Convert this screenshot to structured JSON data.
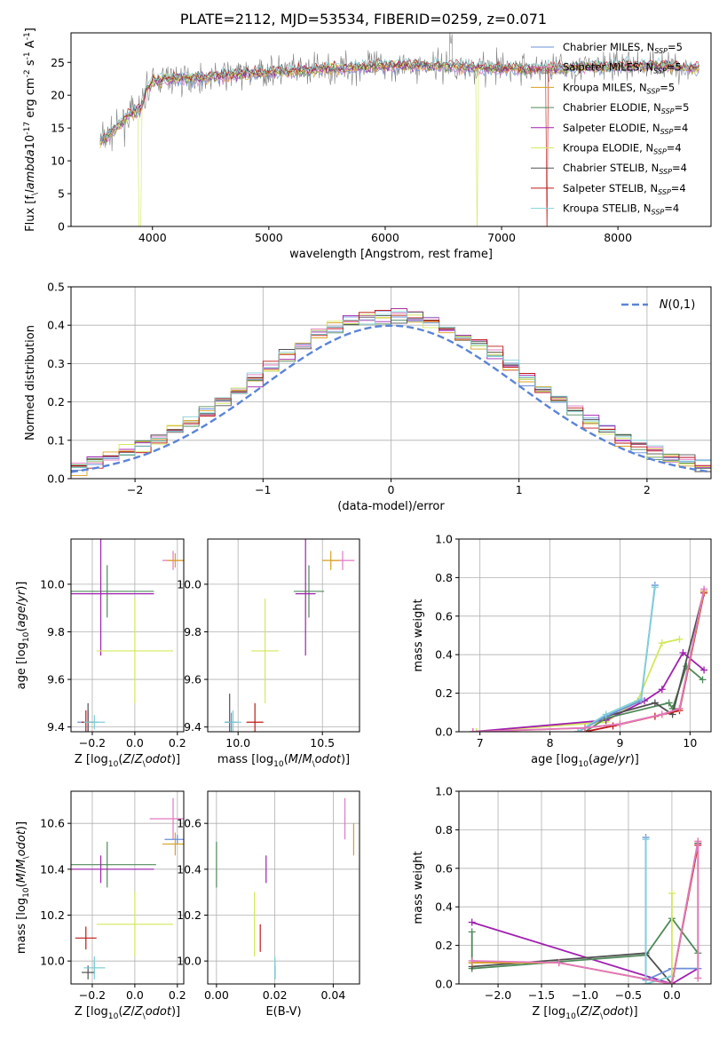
{
  "title": "PLATE=2112, MJD=53534, FIBERID=0259, z=0.071",
  "colors": [
    "#6a8fd8",
    "#e377c2",
    "#d9a020",
    "#4f8a5a",
    "#a020b0",
    "#d4e85a",
    "#505050",
    "#c01818",
    "#80d0d8"
  ],
  "chart_data": [
    {
      "id": "spectrum",
      "type": "line",
      "xlabel": "wavelength [Angstrom, rest frame]",
      "ylabel": "Flux [f$_\\lambda$10$^{-17}$ erg cm$^{-2}$ s$^{-1}$ A$^{-1}$]",
      "xlim": [
        3300,
        8800
      ],
      "ylim": [
        0,
        29.5
      ],
      "xticks": [
        4000,
        5000,
        6000,
        7000,
        8000
      ],
      "yticks": [
        0,
        5,
        10,
        15,
        20,
        25
      ],
      "grid": false,
      "legend_position": "top-right",
      "series": [
        {
          "name": "Chabrier MILES, N",
          "sub": "SSP",
          "n": "=5"
        },
        {
          "name": "Salpeter MILES, N",
          "sub": "SSP",
          "n": "=5"
        },
        {
          "name": "Kroupa MILES, N",
          "sub": "SSP",
          "n": "=5"
        },
        {
          "name": "Chabrier ELODIE, N",
          "sub": "SSP",
          "n": "=5"
        },
        {
          "name": "Salpeter ELODIE, N",
          "sub": "SSP",
          "n": "=4"
        },
        {
          "name": "Kroupa ELODIE, N",
          "sub": "SSP",
          "n": "=4"
        },
        {
          "name": "Chabrier STELIB, N",
          "sub": "SSP",
          "n": "=4"
        },
        {
          "name": "Salpeter STELIB, N",
          "sub": "SSP",
          "n": "=4"
        },
        {
          "name": "Kroupa STELIB, N",
          "sub": "SSP",
          "n": "=4"
        }
      ],
      "continuum": {
        "x": [
          3550,
          3700,
          3800,
          3900,
          3950,
          4000,
          4100,
          4300,
          4600,
          5000,
          5500,
          6000,
          6500,
          7000,
          7400,
          7600,
          8000,
          8400,
          8700
        ],
        "y": [
          13,
          15,
          17,
          18,
          21,
          22,
          22.5,
          22.5,
          23,
          23.5,
          24,
          24.5,
          24.5,
          24,
          24,
          24.2,
          24.5,
          24.5,
          24
        ]
      }
    },
    {
      "id": "residuals",
      "type": "line",
      "xlabel": "(data-model)/error",
      "ylabel": "Normed distribution",
      "xlim": [
        -2.5,
        2.5
      ],
      "ylim": [
        0,
        0.5
      ],
      "xticks": [
        -2,
        -1,
        0,
        1,
        2
      ],
      "yticks": [
        0.0,
        0.1,
        0.2,
        0.3,
        0.4,
        0.5
      ],
      "grid": true,
      "legend": "$\\mathcal{N}(0,1)$",
      "legend_position": "top-right"
    },
    {
      "id": "age-vs-Z",
      "type": "scatter",
      "xlabel": "Z [log$_{10}$($Z/Z_\\odot$)]",
      "ylabel": "age  [log$_{10}$($age/yr$)]",
      "xlim": [
        -0.3,
        0.23
      ],
      "ylim": [
        9.38,
        10.19
      ],
      "xticks": [
        -0.2,
        0.0,
        0.2
      ],
      "yticks": [
        9.4,
        9.6,
        9.8,
        10.0
      ],
      "grid": true,
      "points": [
        {
          "c": 0,
          "x": -0.22,
          "y": 9.42,
          "xe": 0.05,
          "ye": 0.05
        },
        {
          "c": 1,
          "x": 0.18,
          "y": 10.1,
          "xe": 0.05,
          "ye": 0.04
        },
        {
          "c": 2,
          "x": 0.19,
          "y": 10.1,
          "xe": 0.04,
          "ye": 0.03
        },
        {
          "c": 3,
          "x": -0.13,
          "y": 9.97,
          "xe": 0.22,
          "ye": 0.11
        },
        {
          "c": 4,
          "x": -0.16,
          "y": 9.96,
          "xe": 0.25,
          "ye": 0.26
        },
        {
          "c": 5,
          "x": 0.0,
          "y": 9.72,
          "xe": 0.18,
          "ye": 0.22
        },
        {
          "c": 6,
          "x": -0.22,
          "y": 9.42,
          "xe": 0.03,
          "ye": 0.08
        },
        {
          "c": 7,
          "x": -0.23,
          "y": 9.42,
          "xe": 0.02,
          "ye": 0.05
        },
        {
          "c": 8,
          "x": -0.19,
          "y": 9.42,
          "xe": 0.05,
          "ye": 0.03
        }
      ]
    },
    {
      "id": "age-vs-mass",
      "type": "scatter",
      "xlabel": "mass [log$_{10}$($M/M_\\odot$)]",
      "ylabel": "",
      "xlim": [
        9.82,
        10.72
      ],
      "ylim": [
        9.38,
        10.19
      ],
      "xticks": [
        10.0,
        10.5
      ],
      "yticks": [
        9.4,
        9.6,
        9.8,
        10.0
      ],
      "grid": true,
      "points": [
        {
          "c": 0,
          "x": 9.96,
          "y": 9.42,
          "xe": 0.04,
          "ye": 0.04
        },
        {
          "c": 1,
          "x": 10.62,
          "y": 10.1,
          "xe": 0.07,
          "ye": 0.04
        },
        {
          "c": 2,
          "x": 10.55,
          "y": 10.1,
          "xe": 0.05,
          "ye": 0.04
        },
        {
          "c": 3,
          "x": 10.42,
          "y": 9.97,
          "xe": 0.09,
          "ye": 0.11
        },
        {
          "c": 4,
          "x": 10.4,
          "y": 9.96,
          "xe": 0.06,
          "ye": 0.26
        },
        {
          "c": 5,
          "x": 10.16,
          "y": 9.72,
          "xe": 0.08,
          "ye": 0.22
        },
        {
          "c": 6,
          "x": 9.95,
          "y": 9.42,
          "xe": 0.03,
          "ye": 0.12
        },
        {
          "c": 7,
          "x": 10.1,
          "y": 9.42,
          "xe": 0.05,
          "ye": 0.08
        },
        {
          "c": 8,
          "x": 9.97,
          "y": 9.42,
          "xe": 0.05,
          "ye": 0.05
        }
      ]
    },
    {
      "id": "weight-vs-age",
      "type": "line",
      "xlabel": "age  [log$_{10}$($age/yr$)]",
      "ylabel": "mass weight",
      "xlim": [
        6.7,
        10.3
      ],
      "ylim": [
        0,
        1.0
      ],
      "xticks": [
        7,
        8,
        9,
        10
      ],
      "yticks": [
        0.0,
        0.2,
        0.4,
        0.6,
        0.8,
        1.0
      ],
      "grid": true,
      "series": [
        {
          "c": 5,
          "x": [
            6.95,
            8.8,
            9.25,
            9.6,
            9.85
          ],
          "y": [
            0.0,
            0.05,
            0.16,
            0.46,
            0.48
          ]
        },
        {
          "c": 4,
          "x": [
            6.9,
            8.8,
            9.35,
            9.6,
            9.9,
            10.2
          ],
          "y": [
            0.0,
            0.06,
            0.16,
            0.22,
            0.41,
            0.32
          ]
        },
        {
          "c": 3,
          "x": [
            8.5,
            8.8,
            9.7,
            9.75,
            9.95,
            10.18
          ],
          "y": [
            0.0,
            0.07,
            0.15,
            0.12,
            0.34,
            0.27
          ]
        },
        {
          "c": 6,
          "x": [
            8.4,
            8.8,
            9.5,
            9.75,
            10.2
          ],
          "y": [
            0.0,
            0.08,
            0.15,
            0.09,
            0.73
          ]
        },
        {
          "c": 0,
          "x": [
            8.4,
            8.8,
            9.3,
            9.5
          ],
          "y": [
            0.0,
            0.08,
            0.16,
            0.76
          ]
        },
        {
          "c": 8,
          "x": [
            8.4,
            8.8,
            9.3,
            9.5
          ],
          "y": [
            0.0,
            0.09,
            0.17,
            0.75
          ]
        },
        {
          "c": 7,
          "x": [
            8.5,
            8.9,
            9.5,
            9.85,
            10.2
          ],
          "y": [
            0.0,
            0.03,
            0.08,
            0.11,
            0.72
          ]
        },
        {
          "c": 2,
          "x": [
            6.9,
            8.5,
            9.0,
            9.6,
            9.85,
            10.2
          ],
          "y": [
            0.0,
            0.02,
            0.04,
            0.09,
            0.12,
            0.73
          ]
        },
        {
          "c": 1,
          "x": [
            6.9,
            8.5,
            9.0,
            9.6,
            9.85,
            10.2
          ],
          "y": [
            0.0,
            0.02,
            0.04,
            0.09,
            0.12,
            0.74
          ]
        }
      ]
    },
    {
      "id": "mass-vs-Z",
      "type": "scatter",
      "xlabel": "Z [log$_{10}$($Z/Z_\\odot$)]",
      "ylabel": "mass [log$_{10}$($M/M_\\odot$)]",
      "xlim": [
        -0.3,
        0.23
      ],
      "ylim": [
        9.9,
        10.74
      ],
      "xticks": [
        -0.2,
        0.0,
        0.2
      ],
      "yticks": [
        10.0,
        10.2,
        10.4,
        10.6
      ],
      "grid": true,
      "points": [
        {
          "c": 0,
          "x": -0.19,
          "y": 9.97,
          "xe": 0.05,
          "ye": 0.03
        },
        {
          "c": 1,
          "x": 0.18,
          "y": 10.62,
          "xe": 0.11,
          "ye": 0.09
        },
        {
          "c": 2,
          "x": 0.19,
          "y": 10.51,
          "xe": 0.06,
          "ye": 0.05
        },
        {
          "c": 3,
          "x": -0.13,
          "y": 10.42,
          "xe": 0.23,
          "ye": 0.1
        },
        {
          "c": 4,
          "x": -0.16,
          "y": 10.4,
          "xe": 0.25,
          "ye": 0.06
        },
        {
          "c": 5,
          "x": 0.0,
          "y": 10.16,
          "xe": 0.18,
          "ye": 0.14
        },
        {
          "c": 6,
          "x": -0.22,
          "y": 9.95,
          "xe": 0.03,
          "ye": 0.03
        },
        {
          "c": 7,
          "x": -0.23,
          "y": 10.1,
          "xe": 0.05,
          "ye": 0.05
        },
        {
          "c": 8,
          "x": -0.19,
          "y": 9.97,
          "xe": 0.05,
          "ye": 0.05
        },
        {
          "c": 0,
          "x": 0.2,
          "y": 10.53,
          "xe": 0.06,
          "ye": 0.02
        }
      ]
    },
    {
      "id": "mass-vs-EBV",
      "type": "scatter",
      "xlabel": "E(B-V)",
      "ylabel": "",
      "xlim": [
        -0.003,
        0.049
      ],
      "ylim": [
        9.9,
        10.74
      ],
      "xticks": [
        0.0,
        0.02,
        0.04
      ],
      "yticks": [
        10.0,
        10.2,
        10.4,
        10.6
      ],
      "grid": true,
      "points": [
        {
          "c": 0,
          "x": 0.02,
          "y": 9.97,
          "xe": 0.0,
          "ye": 0.04
        },
        {
          "c": 1,
          "x": 0.044,
          "y": 10.62,
          "xe": 0.0,
          "ye": 0.09
        },
        {
          "c": 2,
          "x": 0.047,
          "y": 10.53,
          "xe": 0.0,
          "ye": 0.07
        },
        {
          "c": 3,
          "x": 0.0,
          "y": 10.42,
          "xe": 0.0,
          "ye": 0.1
        },
        {
          "c": 4,
          "x": 0.017,
          "y": 10.4,
          "xe": 0.0,
          "ye": 0.06
        },
        {
          "c": 5,
          "x": 0.013,
          "y": 10.16,
          "xe": 0.0,
          "ye": 0.14
        },
        {
          "c": 6,
          "x": 0.02,
          "y": 9.95,
          "xe": 0.0,
          "ye": 0.03
        },
        {
          "c": 7,
          "x": 0.015,
          "y": 10.1,
          "xe": 0.0,
          "ye": 0.06
        },
        {
          "c": 8,
          "x": 0.02,
          "y": 9.97,
          "xe": 0.0,
          "ye": 0.05
        }
      ]
    },
    {
      "id": "weight-vs-Z",
      "type": "line",
      "xlabel": "Z [log$_{10}$($Z/Z_\\odot$)]",
      "ylabel": "mass weight",
      "xlim": [
        -2.45,
        0.45
      ],
      "ylim": [
        0,
        1.0
      ],
      "xticks": [
        -2.0,
        -1.5,
        -1.0,
        -0.5,
        0.0
      ],
      "yticks": [
        0.0,
        0.2,
        0.4,
        0.6,
        0.8,
        1.0
      ],
      "grid": true,
      "series": [
        {
          "c": 4,
          "x": [
            -2.3,
            0.0,
            0.3
          ],
          "y": [
            0.32,
            0.0,
            0.08
          ]
        },
        {
          "c": 3,
          "x": [
            -2.3,
            -2.3,
            -0.3,
            0.0,
            0.3
          ],
          "y": [
            0.27,
            0.08,
            0.15,
            0.34,
            0.16
          ]
        },
        {
          "c": 6,
          "x": [
            -2.3,
            -0.3,
            0.0,
            0.3
          ],
          "y": [
            0.09,
            0.16,
            0.0,
            0.73
          ]
        },
        {
          "c": 0,
          "x": [
            -0.3,
            -0.3,
            0.0,
            0.3
          ],
          "y": [
            0.76,
            0.02,
            0.08,
            0.08
          ]
        },
        {
          "c": 8,
          "x": [
            -0.3,
            -0.3,
            0.0
          ],
          "y": [
            0.75,
            0.0,
            0.04
          ]
        },
        {
          "c": 5,
          "x": [
            0.0,
            0.0
          ],
          "y": [
            0.0,
            0.47
          ]
        },
        {
          "c": 7,
          "x": [
            -2.3,
            -1.3,
            0.0,
            0.3
          ],
          "y": [
            0.11,
            0.11,
            0.0,
            0.72
          ]
        },
        {
          "c": 2,
          "x": [
            -2.3,
            -1.3,
            0.0,
            0.3,
            0.3
          ],
          "y": [
            0.11,
            0.11,
            0.0,
            0.74,
            0.03
          ]
        },
        {
          "c": 1,
          "x": [
            -2.3,
            -1.3,
            0.0,
            0.3,
            0.3
          ],
          "y": [
            0.12,
            0.11,
            0.0,
            0.74,
            0.03
          ]
        }
      ]
    }
  ]
}
